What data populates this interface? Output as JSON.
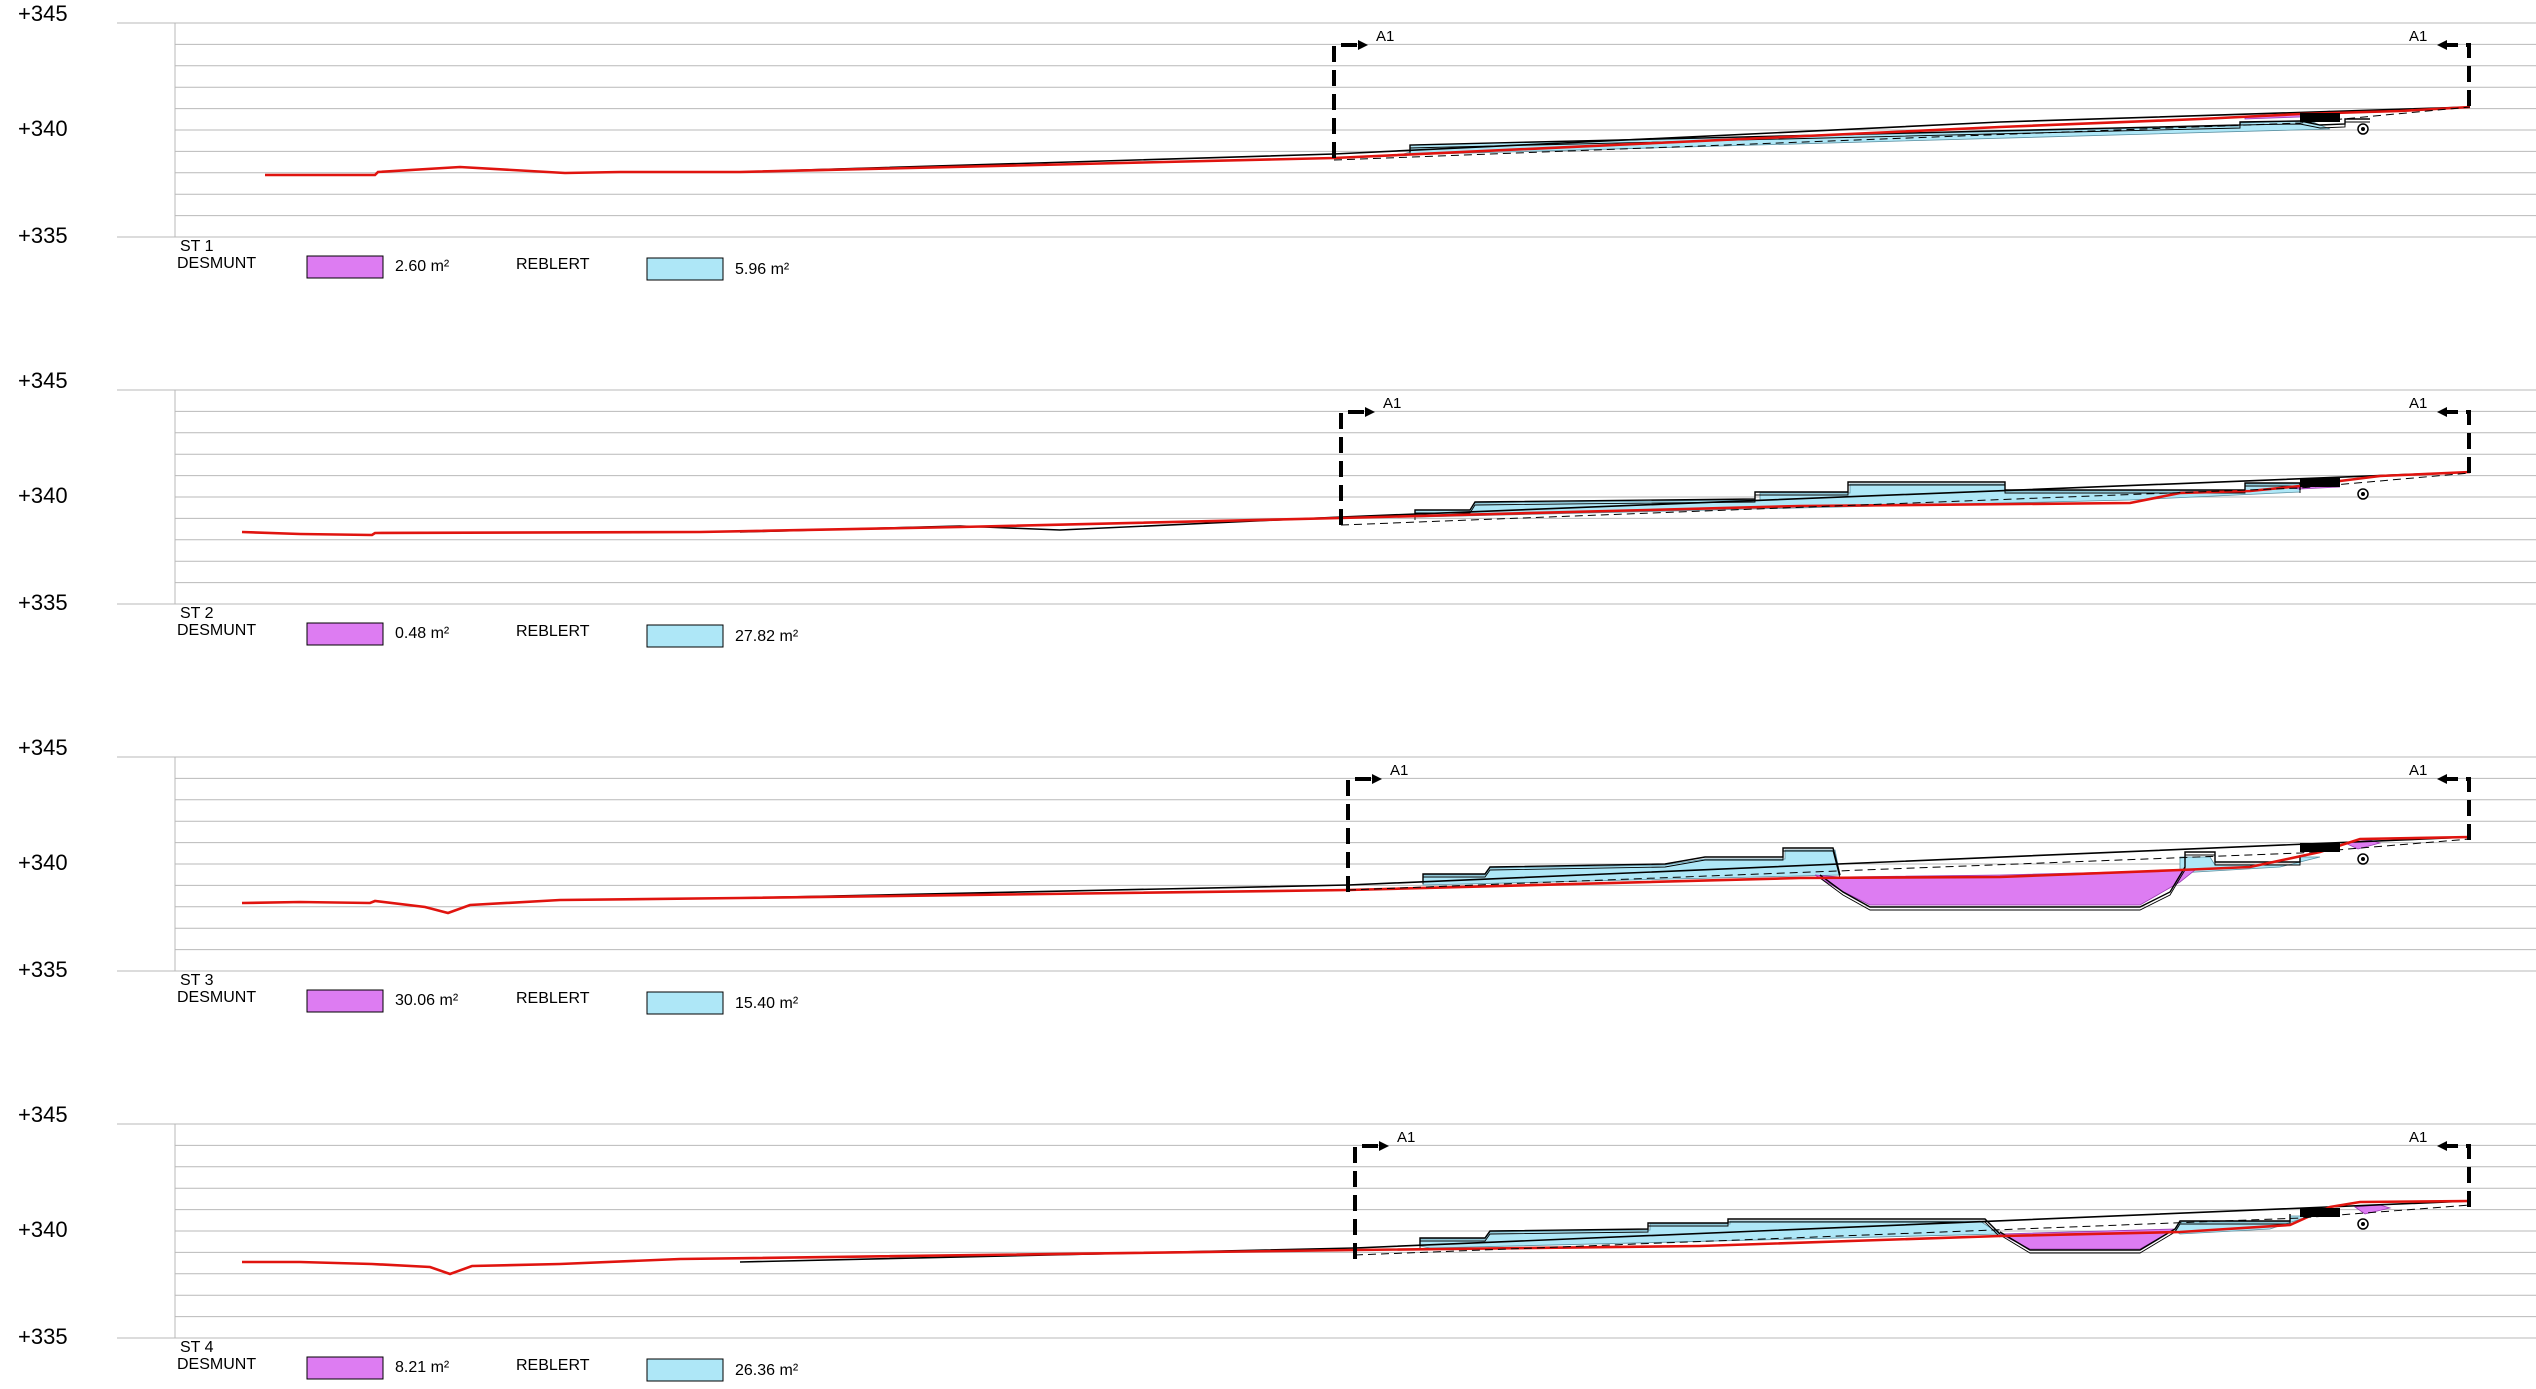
{
  "colors": {
    "grid": "#b9b9b9",
    "terrain": "#e0140f",
    "outline": "#000000",
    "desmunt": "#dd7cf2",
    "reblert": "#aee7f7"
  },
  "elevations": [
    "+345",
    "+340",
    "+335"
  ],
  "sections": [
    {
      "name": "ST 1",
      "desmunt_label": "DESMUNT",
      "desmunt_value": "2.60 m²",
      "reblert_label": "REBLERT",
      "reblert_value": "5.96 m²",
      "markers": [
        "A1",
        "A1"
      ]
    },
    {
      "name": "ST 2",
      "desmunt_label": "DESMUNT",
      "desmunt_value": "0.48 m²",
      "reblert_label": "REBLERT",
      "reblert_value": "27.82 m²",
      "markers": [
        "A1",
        "A1"
      ]
    },
    {
      "name": "ST 3",
      "desmunt_label": "DESMUNT",
      "desmunt_value": "30.06 m²",
      "reblert_label": "REBLERT",
      "reblert_value": "15.40 m²",
      "markers": [
        "A1",
        "A1"
      ]
    },
    {
      "name": "ST 4",
      "desmunt_label": "DESMUNT",
      "desmunt_value": "8.21 m²",
      "reblert_label": "REBLERT",
      "reblert_value": "26.36 m²",
      "markers": [
        "A1",
        "A1"
      ]
    }
  ]
}
